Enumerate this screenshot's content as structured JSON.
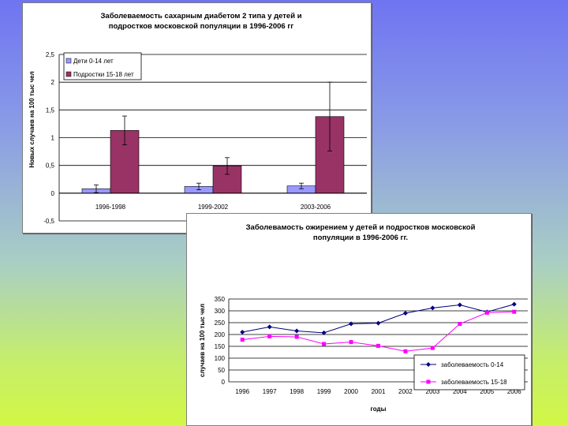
{
  "chart_data": [
    {
      "type": "bar",
      "title_lines": [
        "Заболеваемость  сахарным  диабетом  2 типа у детей и",
        "подростков московской  популяции в 1996-2006  гг"
      ],
      "ylabel": "Новых случаев на 100 тыс чел",
      "xlabel": "",
      "ylim": [
        -0.5,
        2.5
      ],
      "yticks": [
        "2,5",
        "2",
        "1,5",
        "1",
        "0,5",
        "0",
        "-0,5"
      ],
      "grid": true,
      "legend_position": "top-left",
      "categories": [
        "1996-1998",
        "1999-2002",
        "2003-2006"
      ],
      "series": [
        {
          "name": "Дети 0-14 лет",
          "color": "#9999ff",
          "values": [
            0.08,
            0.12,
            0.13
          ],
          "err": [
            0.07,
            0.06,
            0.05
          ]
        },
        {
          "name": "Подростки 15-18 лет",
          "color": "#993366",
          "values": [
            1.13,
            0.49,
            1.38
          ],
          "err": [
            0.26,
            0.15,
            0.62
          ]
        }
      ]
    },
    {
      "type": "line",
      "title_lines": [
        "Заболевамость ожирением у детей и подростков московской",
        "популяции в 1996-2006 гг."
      ],
      "ylabel": "случаев на 100 тыс чел",
      "xlabel": "годы",
      "ylim": [
        0,
        350
      ],
      "yticks": [
        "350",
        "300",
        "250",
        "200",
        "150",
        "100",
        "50",
        "0"
      ],
      "grid": true,
      "legend_position": "bottom-right",
      "x": [
        "1996",
        "1997",
        "1998",
        "1999",
        "2000",
        "2001",
        "2002",
        "2003",
        "2004",
        "2005",
        "2006"
      ],
      "series": [
        {
          "name": "заболеваемость 0-14",
          "color": "#000080",
          "marker": "diamond",
          "values": [
            210,
            232,
            215,
            207,
            245,
            248,
            290,
            312,
            325,
            295,
            328
          ]
        },
        {
          "name": "заболеваемость 15-18",
          "color": "#ff00ff",
          "marker": "square",
          "values": [
            178,
            192,
            190,
            160,
            168,
            152,
            129,
            143,
            245,
            292,
            296
          ]
        }
      ]
    }
  ]
}
